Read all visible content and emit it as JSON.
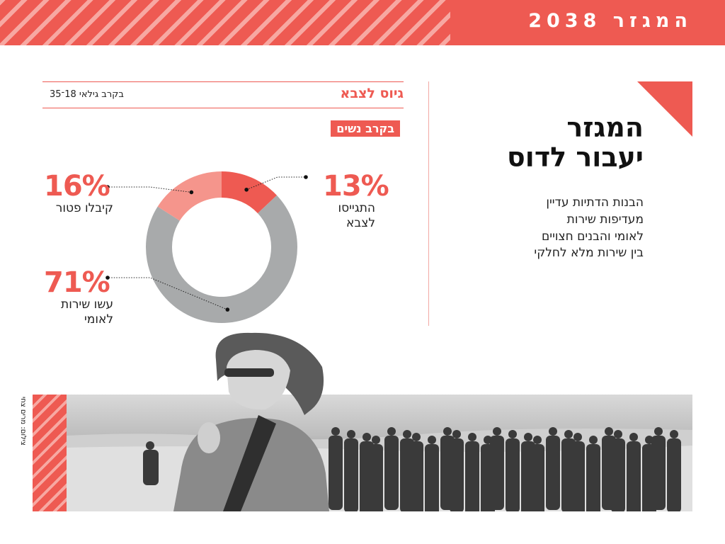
{
  "header": {
    "brand": "המגזר 2038"
  },
  "article": {
    "headline_lines": [
      "המגזר",
      "יעבור לדוס"
    ],
    "body_lines": [
      "הבנות הדתיות עדיין",
      "מעדיפות שירות",
      "לאומי והבנים חצויים",
      "בין שירות מלא לחלקי"
    ]
  },
  "chart_section": {
    "title": "גיוס לצבא",
    "subtitle": "בקרב גילאי 18־35",
    "group_badge": "בקרב נשים"
  },
  "chart_data": {
    "type": "pie",
    "donut": true,
    "title": "גיוס לצבא",
    "subtitle": "בקרב גילאי 18־35",
    "group": "בקרב נשים",
    "slices": [
      {
        "value": 13,
        "label": "13%",
        "category": "התגייסו לצבא",
        "category_lines": [
          "התגייסו",
          "לצבא"
        ],
        "color": "#ee5a52"
      },
      {
        "value": 71,
        "label": "71%",
        "category": "עשו שירות לאומי",
        "category_lines": [
          "עשו שירות",
          "לאומי"
        ],
        "color": "#a8aaab"
      },
      {
        "value": 16,
        "label": "16%",
        "category": "קיבלו פטור",
        "category_lines": [
          "קיבלו פטור"
        ],
        "color": "#f5958c"
      }
    ]
  },
  "photo": {
    "credit": "צילום: מרים צחי"
  },
  "colors": {
    "accent": "#ee5a52",
    "accent_light": "#f5958c",
    "gray": "#a8aaab"
  }
}
